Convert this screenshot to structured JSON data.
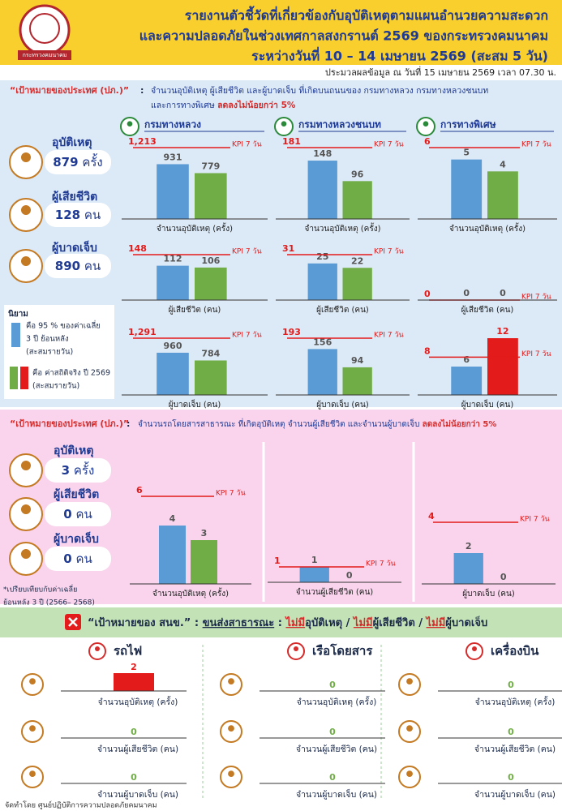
{
  "header": {
    "logo_text": "กระทรวงคมนาคม",
    "title_lines": [
      "รายงานตัวชี้วัดที่เกี่ยวข้องกับอุบัติเหตุตามแผนอำนวยความสะดวก",
      "และความปลอดภัยในช่วงเทศกาลสงกรานต์ 2569 ของกระทรวงคมนาคม",
      "ระหว่างวันที่ 10 – 14 เมษายน 2569 (สะสม 5 วัน)"
    ],
    "data_as_of": "ประมวลผลข้อมูล ณ วันที่ 15 เมษายน 2569 เวลา 07.30 น."
  },
  "colors": {
    "baseline": "#5b9bd5",
    "actual": "#70ad47",
    "exceeded": "#e31b1b",
    "kpi": "#e31b1b"
  },
  "kpi_name": "KPI 7 วัน",
  "section1": {
    "label": "“เป้าหมายของประเทศ (ปภ.)”",
    "colon": ":",
    "goal_lines": [
      "จำนวนอุบัติเหตุ ผู้เสียชีวิต และผู้บาดเจ็บ ที่เกิดบนถนนของ กรมทางหลวง กรมทางหลวงชนบท",
      "และการทางพิเศษ"
    ],
    "goal_highlight": "ลดลงไม่น้อยกว่า 5%",
    "summary": [
      {
        "label": "อุบัติเหตุ",
        "value": 879,
        "unit": "ครั้ง"
      },
      {
        "label": "ผู้เสียชีวิต",
        "value": 128,
        "unit": "คน"
      },
      {
        "label": "ผู้บาดเจ็บ",
        "value": 890,
        "unit": "คน"
      }
    ],
    "legend": {
      "title": "นิยาม",
      "blue_lines": [
        "คือ 95 % ของค่าเฉลี่ย",
        "3 ปี ย้อนหลัง",
        "(สะสมรายวัน)"
      ],
      "actual_lines": [
        "คือ ค่าสถิติจริง ปี 2569",
        "(สะสมรายวัน)"
      ]
    },
    "departments": [
      {
        "name": "กรมทางหลวง",
        "charts": [
          {
            "label": "จำนวนอุบัติเหตุ (ครั้ง)",
            "kpi": {
              "value": 1213,
              "label": "1,213"
            },
            "baseline": 931,
            "actual": 779
          },
          {
            "label": "ผู้เสียชีวิต (คน)",
            "kpi": 148,
            "baseline": 112,
            "actual": 106
          },
          {
            "label": "ผู้บาดเจ็บ (คน)",
            "kpi": {
              "value": 1291,
              "label": "1,291"
            },
            "baseline": 960,
            "actual": 784
          }
        ]
      },
      {
        "name": "กรมทางหลวงชนบท",
        "charts": [
          {
            "label": "จำนวนอุบัติเหตุ (ครั้ง)",
            "kpi": 181,
            "baseline": 148,
            "actual": 96
          },
          {
            "label": "ผู้เสียชีวิต (คน)",
            "kpi": 31,
            "baseline": 25,
            "actual": 22
          },
          {
            "label": "ผู้บาดเจ็บ (คน)",
            "kpi": 193,
            "baseline": 156,
            "actual": 94
          }
        ]
      },
      {
        "name": "การทางพิเศษ",
        "charts": [
          {
            "label": "จำนวนอุบัติเหตุ (ครั้ง)",
            "kpi": 6,
            "baseline": 5,
            "actual": 4
          },
          {
            "label": "ผู้เสียชีวิต (คน)",
            "kpi": 0,
            "baseline": 0,
            "actual": 0
          },
          {
            "label": "ผู้บาดเจ็บ (คน)",
            "kpi": 8,
            "baseline": 6,
            "actual": 12
          }
        ]
      }
    ]
  },
  "section2": {
    "label": "“เป้าหมายของประเทศ (ปภ.)”",
    "colon": ":",
    "goal": "จำนวนรถโดยสารสาธารณะ ที่เกิดอุบัติเหตุ จำนวนผู้เสียชีวิต และจำนวนผู้บาดเจ็บ",
    "goal_highlight": "ลดลงไม่น้อยกว่า 5%",
    "summary": [
      {
        "label": "อุบัติเหตุ",
        "value": 3,
        "unit": "ครั้ง"
      },
      {
        "label": "ผู้เสียชีวิต",
        "value": 0,
        "unit": "คน"
      },
      {
        "label": "ผู้บาดเจ็บ",
        "value": 0,
        "unit": "คน"
      }
    ],
    "note_lines": [
      "*เปรียบเทียบกับค่าเฉลี่ย",
      "ย้อนหลัง 3 ปี (2566– 2568)"
    ],
    "charts": [
      {
        "label": "จำนวนอุบัติเหตุ (ครั้ง)",
        "kpi": 6,
        "baseline": 4,
        "actual": 3
      },
      {
        "label": "จำนวนผู้เสียชีวิต (คน)",
        "kpi": 1,
        "baseline": 1,
        "actual": 0
      },
      {
        "label": "ผู้บาดเจ็บ (คน)",
        "kpi": 4,
        "baseline": 2,
        "actual": 0
      }
    ]
  },
  "section3": {
    "label": "“เป้าหมายของ สนข.”",
    "colon": ":",
    "subject": "ขนส่งสาธารณะ",
    "targets": [
      {
        "negation": "ไม่มี",
        "item": "อุบัติเหตุ"
      },
      {
        "negation": "ไม่มี",
        "item": "ผู้เสียชีวิต"
      },
      {
        "negation": "ไม่มี",
        "item": "ผู้บาดเจ็บ"
      }
    ],
    "separator": "/",
    "modes": [
      {
        "name": "รถไฟ",
        "rows": [
          {
            "label": "จำนวนอุบัติเหตุ (ครั้ง)",
            "value": 2
          },
          {
            "label": "จำนวนผู้เสียชีวิต (คน)",
            "value": 0
          },
          {
            "label": "จำนวนผู้บาดเจ็บ (คน)",
            "value": 0
          }
        ]
      },
      {
        "name": "เรือโดยสาร",
        "rows": [
          {
            "label": "จำนวนอุบัติเหตุ (ครั้ง)",
            "value": 0
          },
          {
            "label": "จำนวนผู้เสียชีวิต (คน)",
            "value": 0
          },
          {
            "label": "จำนวนผู้บาดเจ็บ (คน)",
            "value": 0
          }
        ]
      },
      {
        "name": "เครื่องบิน",
        "rows": [
          {
            "label": "จำนวนอุบัติเหตุ (ครั้ง)",
            "value": 0
          },
          {
            "label": "จำนวนผู้เสียชีวิต (คน)",
            "value": 0
          },
          {
            "label": "จำนวนผู้บาดเจ็บ (คน)",
            "value": 0
          }
        ]
      }
    ]
  },
  "footer": "จัดทำโดย ศูนย์ปฏิบัติการความปลอดภัยคมนาคม"
}
